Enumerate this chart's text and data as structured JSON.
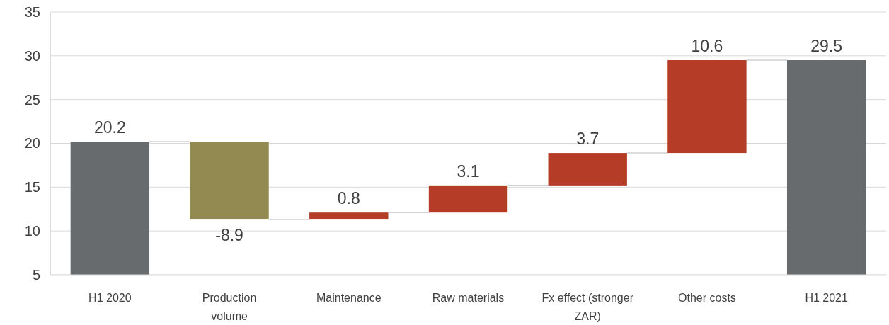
{
  "chart_data": {
    "type": "bar",
    "categories": [
      "H1 2020",
      "Production volume",
      "Maintenance",
      "Raw materials",
      "Fx effect (stronger ZAR)",
      "Other costs",
      "H1 2021"
    ],
    "values": [
      15.2,
      -8.9,
      0.8,
      3.1,
      3.7,
      10.6,
      24.5
    ],
    "base": [
      5,
      20.2,
      11.3,
      12.1,
      15.2,
      18.9,
      5
    ],
    "value_labels": [
      "20.2",
      "-8.9",
      "0.8",
      "3.1",
      "3.7",
      "10.6",
      "29.5"
    ],
    "colors": [
      "#676b6e",
      "#938a52",
      "#b53c26",
      "#b53c26",
      "#b53c26",
      "#b53c26",
      "#676b6e"
    ],
    "ylim": [
      5,
      35
    ],
    "yticks": [
      5,
      10,
      15,
      20,
      25,
      30,
      35
    ],
    "grid": "y"
  }
}
